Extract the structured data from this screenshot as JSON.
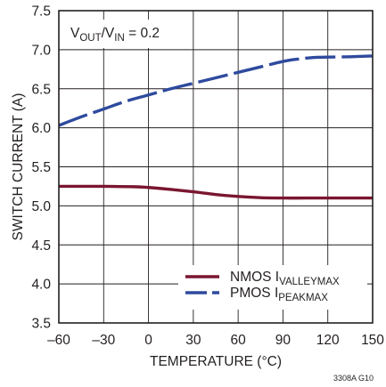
{
  "chart_data": {
    "type": "line",
    "xlabel": "TEMPERATURE (°C)",
    "ylabel": "SWITCH CURRENT (A)",
    "xlim": [
      -60,
      150
    ],
    "ylim": [
      3.5,
      7.5
    ],
    "x_ticks": [
      -60,
      -30,
      0,
      30,
      60,
      90,
      120,
      150
    ],
    "y_ticks": [
      3.5,
      4.0,
      4.5,
      5.0,
      5.5,
      6.0,
      6.5,
      7.0,
      7.5
    ],
    "x_tick_labels": [
      "–60",
      "–30",
      "0",
      "30",
      "60",
      "90",
      "120",
      "150"
    ],
    "y_tick_labels": [
      "3.5",
      "4.0",
      "4.5",
      "5.0",
      "5.5",
      "6.0",
      "6.5",
      "7.0",
      "7.5"
    ],
    "grid": true,
    "annotation": {
      "v": "V",
      "out_sub": "OUT",
      "slash": "/V",
      "in_sub": "IN",
      "eq": " = 0.2"
    },
    "series": [
      {
        "name": "NMOS I",
        "name_sub": "VALLEYMAX",
        "style": "solid",
        "color": "#7a1630",
        "x": [
          -60,
          -30,
          -10,
          0,
          15,
          30,
          45,
          60,
          75,
          90,
          105,
          120,
          135,
          150
        ],
        "y": [
          5.25,
          5.25,
          5.245,
          5.235,
          5.21,
          5.18,
          5.145,
          5.12,
          5.105,
          5.1,
          5.1,
          5.1,
          5.1,
          5.1
        ]
      },
      {
        "name": "PMOS I",
        "name_sub": "PEAKMAX",
        "style": "dashed",
        "color": "#2e4a9e",
        "x": [
          -60,
          -45,
          -30,
          -15,
          0,
          15,
          30,
          45,
          60,
          75,
          90,
          100,
          110,
          120,
          135,
          150
        ],
        "y": [
          6.03,
          6.14,
          6.24,
          6.34,
          6.42,
          6.5,
          6.57,
          6.64,
          6.71,
          6.78,
          6.85,
          6.88,
          6.9,
          6.905,
          6.91,
          6.92
        ]
      }
    ],
    "legend_position": "bottom-right",
    "figure_id": "3308A G10"
  }
}
